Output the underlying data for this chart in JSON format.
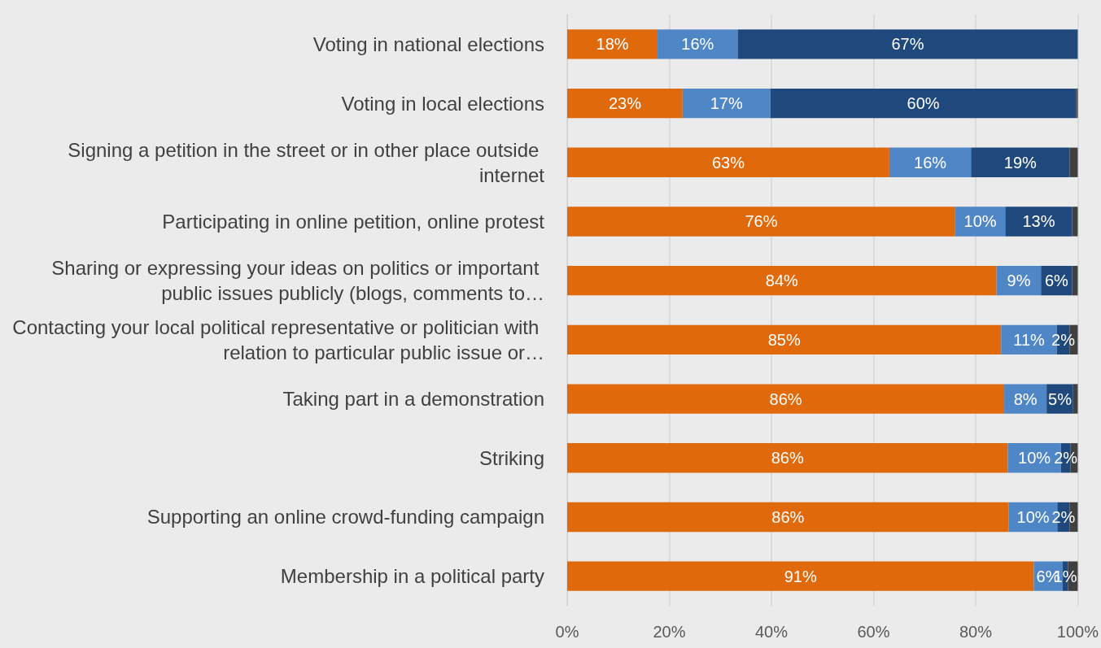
{
  "chart_data": {
    "type": "bar",
    "orientation": "horizontal",
    "stacked": true,
    "grid": "x",
    "categories": [
      "Voting in national elections",
      "Voting in local elections",
      "Signing a petition in the street or in other place outside internet",
      "Participating in online petition, online protest",
      "Sharing or expressing your ideas on politics or important public issues publicly (blogs, comments to…",
      "Contacting your local political representative or politician with relation to particular public issue or…",
      "Taking part in a demonstration",
      "Striking",
      "Supporting an online crowd-funding campaign",
      "Membership in a political party"
    ],
    "xlim": [
      0,
      100
    ],
    "xticks": [
      {
        "value": 0,
        "label": "0%"
      },
      {
        "value": 20,
        "label": "20%"
      },
      {
        "value": 40,
        "label": "40%"
      },
      {
        "value": 60,
        "label": "60%"
      },
      {
        "value": 80,
        "label": "80%"
      },
      {
        "value": 100,
        "label": "100%"
      }
    ],
    "series": [
      {
        "color": "#e0690b",
        "values": [
          17.7,
          22.6,
          63.1,
          76.0,
          84.1,
          85.0,
          85.6,
          86.3,
          86.5,
          91.4
        ],
        "value_labels": [
          "18%",
          "23%",
          "63%",
          "76%",
          "84%",
          "85%",
          "86%",
          "86%",
          "86%",
          "91%"
        ]
      },
      {
        "color": "#4f86c6",
        "values": [
          15.7,
          17.2,
          16.0,
          9.8,
          8.7,
          10.9,
          8.3,
          10.4,
          9.5,
          5.6
        ],
        "value_labels": [
          "16%",
          "17%",
          "16%",
          "10%",
          "9%",
          "11%",
          "8%",
          "10%",
          "10%",
          "6%"
        ]
      },
      {
        "color": "#1f497d",
        "values": [
          66.6,
          59.9,
          19.3,
          13.1,
          6.1,
          2.5,
          5.2,
          1.9,
          2.4,
          1.1
        ],
        "value_labels": [
          "67%",
          "60%",
          "19%",
          "13%",
          "6%",
          "2%",
          "5%",
          "2%",
          "2%",
          "1%"
        ]
      },
      {
        "color": "#404040",
        "values": [
          0,
          0.3,
          1.6,
          1.1,
          1.1,
          1.6,
          0.9,
          1.4,
          1.6,
          1.9
        ]
      }
    ]
  }
}
